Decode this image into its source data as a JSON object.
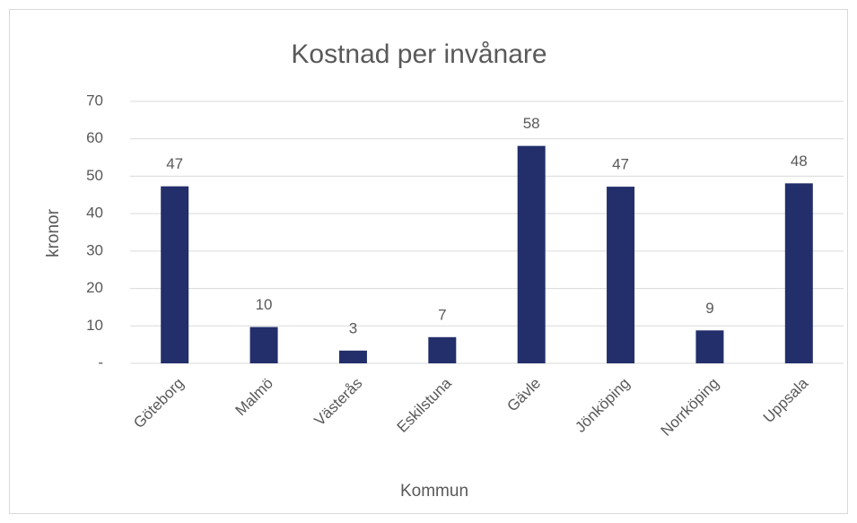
{
  "chart_data": {
    "type": "bar",
    "title": "Kostnad per invånare",
    "xlabel": "Kommun",
    "ylabel": "kronor",
    "categories": [
      "Göteborg",
      "Malmö",
      "Västerås",
      "Eskilstuna",
      "Gävle",
      "Jönköping",
      "Norrköping",
      "Uppsala"
    ],
    "values": [
      47.3,
      9.7,
      3.4,
      7.0,
      58.1,
      47.2,
      8.8,
      48.1
    ],
    "value_labels": [
      "47",
      "10",
      "3",
      "7",
      "58",
      "47",
      "9",
      "48"
    ],
    "color": "#232f6b",
    "ylim": [
      0,
      70
    ],
    "yticks": [
      {
        "value": 0,
        "label": "-"
      },
      10,
      20,
      30,
      40,
      50,
      60,
      70
    ],
    "grid": true
  }
}
